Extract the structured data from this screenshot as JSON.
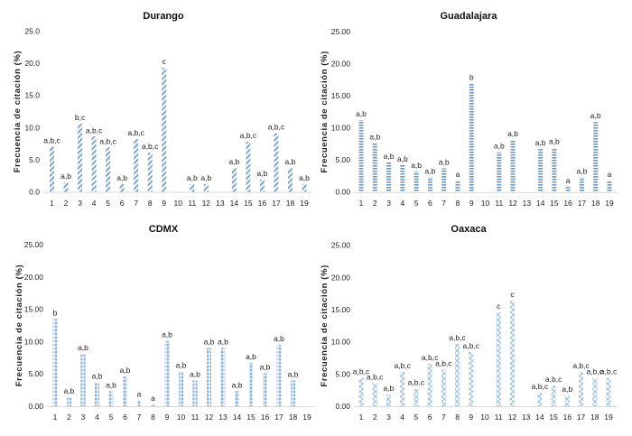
{
  "chart_data": [
    {
      "type": "bar",
      "title": "Durango",
      "ylabel": "Frecuencia de citación (%)",
      "xlabel": "",
      "ylim": [
        0,
        25
      ],
      "yticks": [
        "0.0",
        "5.0",
        "10.0",
        "15.0",
        "20.0",
        "25.0"
      ],
      "categories": [
        "1",
        "2",
        "3",
        "4",
        "5",
        "6",
        "7",
        "8",
        "9",
        "10",
        "11",
        "12",
        "13",
        "14",
        "15",
        "16",
        "17",
        "18",
        "19"
      ],
      "values": [
        7.0,
        1.5,
        10.6,
        8.6,
        6.9,
        1.2,
        8.2,
        6.1,
        19.3,
        0,
        1.2,
        1.2,
        0,
        3.7,
        7.8,
        1.9,
        9.1,
        3.7,
        1.2
      ],
      "labels": [
        "a,b,c",
        "a,b",
        "b,c",
        "a,b,c",
        "a,b,c",
        "a,b",
        "a,b,c",
        "a,b,c",
        "c",
        "",
        "a,b",
        "a,b",
        "",
        "a,b",
        "a,b,c",
        "a,b",
        "a,b,c",
        "a,b",
        "a,b"
      ],
      "pattern": "diagonal-stripes",
      "color": "#7ea6c9",
      "grid": false
    },
    {
      "type": "bar",
      "title": "Guadalajara",
      "ylabel": "Frecuencia de citación (%)",
      "xlabel": "",
      "ylim": [
        0,
        25
      ],
      "yticks": [
        "0.00",
        "5.00",
        "10.00",
        "15.00",
        "20.00",
        "25.00"
      ],
      "categories": [
        "1",
        "2",
        "3",
        "4",
        "5",
        "6",
        "7",
        "8",
        "9",
        "10",
        "11",
        "12",
        "13",
        "14",
        "15",
        "16",
        "17",
        "18",
        "19"
      ],
      "values": [
        11.2,
        7.6,
        4.6,
        4.2,
        3.2,
        2.3,
        3.7,
        1.8,
        16.9,
        0,
        6.2,
        8.1,
        0,
        6.7,
        6.9,
        0.8,
        2.3,
        10.9,
        1.8
      ],
      "labels": [
        "a,b",
        "a,b",
        "a,b",
        "a,b",
        "a,b",
        "a,b",
        "a,b",
        "a",
        "b",
        "",
        "a,b",
        "a,b",
        "",
        "a,b",
        "a,b",
        "a",
        "a,b",
        "a,b",
        "a"
      ],
      "pattern": "horizontal-stripes",
      "color": "#6f98bf",
      "grid": false
    },
    {
      "type": "bar",
      "title": "CDMX",
      "ylabel": "Frecuencia de citación (%)",
      "xlabel": "",
      "ylim": [
        0,
        25
      ],
      "yticks": [
        "0.00",
        "5.00",
        "10.00",
        "15.00",
        "20.00",
        "25.00"
      ],
      "categories": [
        "1",
        "2",
        "3",
        "4",
        "5",
        "6",
        "7",
        "8",
        "9",
        "10",
        "11",
        "12",
        "13",
        "14",
        "15",
        "16",
        "17",
        "18",
        "19"
      ],
      "values": [
        13.5,
        1.4,
        8.1,
        3.7,
        2.3,
        4.6,
        0.9,
        0.3,
        10.1,
        5.4,
        4.0,
        9.0,
        9.0,
        2.3,
        6.7,
        5.1,
        9.5,
        4.0,
        0
      ],
      "labels": [
        "b",
        "a,b",
        "a,b",
        "a,b",
        "a,b",
        "a,b",
        "a",
        "a",
        "a,b",
        "a,b",
        "a,b",
        "a,b",
        "a,b",
        "a,b",
        "a,b",
        "a,b",
        "a,b",
        "a,b",
        ""
      ],
      "pattern": "dots",
      "color": "#6f9fcc",
      "grid": false
    },
    {
      "type": "bar",
      "title": "Oaxaca",
      "ylabel": "Frecuencia de citación (%)",
      "xlabel": "",
      "ylim": [
        0,
        25
      ],
      "yticks": [
        "0.00",
        "5.00",
        "10.00",
        "15.00",
        "20.00",
        "25.00"
      ],
      "categories": [
        "1",
        "2",
        "3",
        "4",
        "5",
        "6",
        "7",
        "8",
        "9",
        "10",
        "11",
        "12",
        "13",
        "14",
        "15",
        "16",
        "17",
        "18",
        "19"
      ],
      "values": [
        4.4,
        3.6,
        1.8,
        5.3,
        2.7,
        6.6,
        5.7,
        9.7,
        8.4,
        0,
        14.6,
        16.4,
        0,
        2.1,
        3.2,
        1.7,
        5.3,
        4.4,
        4.4
      ],
      "labels": [
        "a,b,c",
        "a,b,c",
        "a,b",
        "a,b,c",
        "a,b,c",
        "a,b,c",
        "a,b,c",
        "a,b,c",
        "a,b,c",
        "",
        "c",
        "c",
        "",
        "a,b,c",
        "a,b,c",
        "a,b",
        "a,b,c",
        "a,b,c",
        "a,b,c"
      ],
      "pattern": "crosshatch",
      "color": "#9ec3dc",
      "grid": false
    }
  ]
}
